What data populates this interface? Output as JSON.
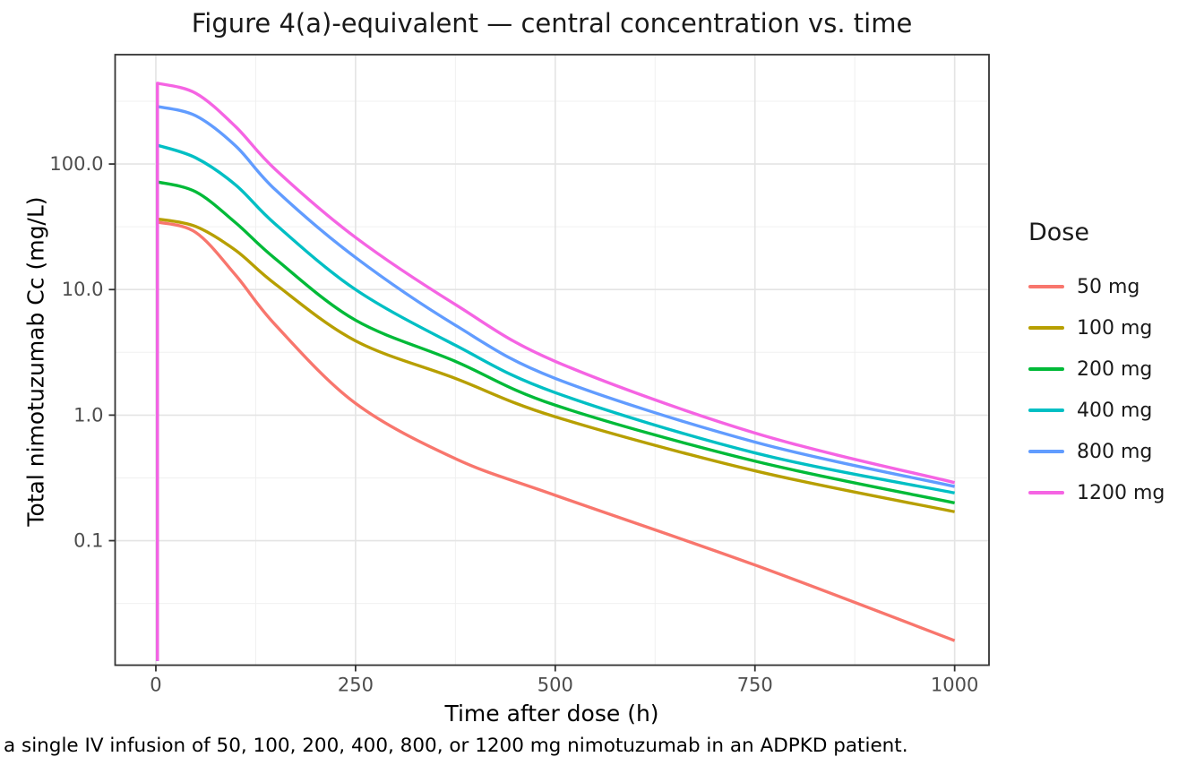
{
  "chart_data": {
    "type": "line",
    "title": "Figure 4(a)-equivalent — central concentration vs. time",
    "xlabel": "Time after dose (h)",
    "ylabel": "Total nimotuzumab Cc (mg/L)",
    "caption": "a single IV infusion of 50, 100, 200, 400, 800, or 1200 mg nimotuzumab in an ADPKD patient.",
    "legend_title": "Dose",
    "x_scale": "linear",
    "y_scale": "log10",
    "xlim": [
      -51,
      1043
    ],
    "ylim": [
      0.0102,
      743
    ],
    "x_ticks": [
      0,
      250,
      500,
      750,
      1000
    ],
    "x_tick_labels": [
      "0",
      "250",
      "500",
      "750",
      "1000"
    ],
    "x_minor_ticks": [
      125,
      375,
      625,
      875
    ],
    "y_ticks": [
      100,
      10,
      1,
      0.1
    ],
    "y_tick_labels": [
      "100.0",
      "10.0",
      "1.0",
      "0.1"
    ],
    "y_minor_ticks": [
      316.23,
      31.623,
      3.1623,
      0.31623,
      0.031623
    ],
    "grid": true,
    "legend_position": "right",
    "spike": {
      "time": 2,
      "baseline": 0.011
    },
    "times": [
      2,
      50,
      100,
      150,
      250,
      375,
      500,
      750,
      1000
    ],
    "series": [
      {
        "name": "50 mg",
        "color": "#F8766D",
        "values": [
          34.5,
          28.5,
          13.0,
          5.2,
          1.24,
          0.45,
          0.23,
          0.064,
          0.016
        ]
      },
      {
        "name": "100 mg",
        "color": "#B79F00",
        "values": [
          36.5,
          31.8,
          20.5,
          11.0,
          3.9,
          1.96,
          0.97,
          0.36,
          0.17
        ]
      },
      {
        "name": "200 mg",
        "color": "#00BA38",
        "values": [
          72.0,
          60.0,
          34.0,
          17.5,
          5.7,
          2.68,
          1.2,
          0.43,
          0.2
        ]
      },
      {
        "name": "400 mg",
        "color": "#00BFC4",
        "values": [
          141.0,
          112.0,
          68.0,
          33.0,
          10.0,
          3.6,
          1.51,
          0.5,
          0.24
        ]
      },
      {
        "name": "800 mg",
        "color": "#619CFF",
        "values": [
          287.0,
          242.0,
          139.0,
          62.0,
          18.0,
          5.2,
          1.96,
          0.61,
          0.27
        ]
      },
      {
        "name": "1200 mg",
        "color": "#F564E3",
        "values": [
          440.0,
          366.0,
          198.0,
          90.0,
          26.0,
          7.6,
          2.68,
          0.72,
          0.29
        ]
      }
    ],
    "style": {
      "major_grid_color": "#E4E4E4",
      "minor_grid_color": "#F0F0F0",
      "panel_border_color": "#333333",
      "tick_color": "#333333",
      "tick_label_color": "#4D4D4D",
      "line_width": 3.4
    }
  }
}
